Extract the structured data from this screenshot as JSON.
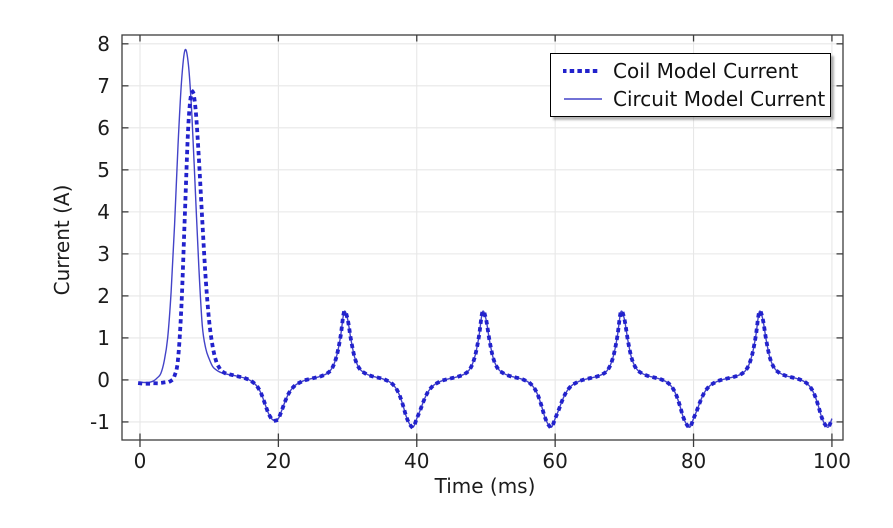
{
  "window": {
    "background": "#ffffff"
  },
  "chart_data": {
    "type": "line",
    "title": "",
    "xlabel": "Time (ms)",
    "ylabel": "Current (A)",
    "x_ticks": [
      0,
      20,
      40,
      60,
      80,
      100
    ],
    "y_ticks": [
      -1,
      0,
      1,
      2,
      3,
      4,
      5,
      6,
      7,
      8
    ],
    "xlim": [
      -2.6,
      101.6
    ],
    "ylim": [
      -1.43,
      8.21
    ],
    "grid": true,
    "legend_position": "top-right",
    "x_unit": "ms",
    "y_unit": "A",
    "x_start": 0,
    "x_step": 0.5,
    "colors": {
      "grid": "#e7e7e7",
      "frame": "#3d3d3d",
      "tick": "#3d3d3d",
      "text": "#1c1c1c"
    },
    "series": [
      {
        "name": "Coil Model Current",
        "style": "dotted",
        "color": "#2222cc",
        "width": 3.8,
        "values": [
          -0.08,
          -0.09,
          -0.09,
          -0.09,
          -0.08,
          -0.08,
          -0.07,
          -0.06,
          -0.04,
          -0.02,
          0.1,
          0.5,
          1.8,
          4.0,
          6.1,
          6.85,
          6.5,
          5.3,
          3.8,
          2.4,
          1.4,
          0.8,
          0.45,
          0.28,
          0.19,
          0.15,
          0.13,
          0.11,
          0.09,
          0.07,
          0.05,
          0.02,
          -0.02,
          -0.08,
          -0.17,
          -0.32,
          -0.54,
          -0.77,
          -0.92,
          -0.97,
          -0.92,
          -0.72,
          -0.5,
          -0.32,
          -0.2,
          -0.12,
          -0.07,
          -0.03,
          0,
          0.02,
          0.04,
          0.06,
          0.08,
          0.11,
          0.15,
          0.22,
          0.36,
          0.62,
          1.05,
          1.62,
          1.45,
          0.95,
          0.55,
          0.33,
          0.22,
          0.16,
          0.12,
          0.09,
          0.07,
          0.05,
          0.03,
          0,
          -0.04,
          -0.1,
          -0.2,
          -0.36,
          -0.6,
          -0.88,
          -1.06,
          -1.12,
          -0.92,
          -0.72,
          -0.5,
          -0.32,
          -0.2,
          -0.12,
          -0.07,
          -0.03,
          0,
          0.02,
          0.04,
          0.06,
          0.08,
          0.11,
          0.15,
          0.22,
          0.36,
          0.62,
          1.05,
          1.62,
          1.45,
          0.95,
          0.55,
          0.33,
          0.22,
          0.16,
          0.12,
          0.09,
          0.07,
          0.05,
          0.03,
          0,
          -0.04,
          -0.1,
          -0.2,
          -0.36,
          -0.6,
          -0.88,
          -1.06,
          -1.12,
          -0.92,
          -0.72,
          -0.5,
          -0.32,
          -0.2,
          -0.12,
          -0.07,
          -0.03,
          0,
          0.02,
          0.04,
          0.06,
          0.08,
          0.11,
          0.15,
          0.22,
          0.36,
          0.62,
          1.05,
          1.62,
          1.45,
          0.95,
          0.55,
          0.33,
          0.22,
          0.16,
          0.12,
          0.09,
          0.07,
          0.05,
          0.03,
          0,
          -0.04,
          -0.1,
          -0.2,
          -0.36,
          -0.6,
          -0.88,
          -1.06,
          -1.12,
          -0.92,
          -0.72,
          -0.5,
          -0.32,
          -0.2,
          -0.12,
          -0.07,
          -0.03,
          0,
          0.02,
          0.04,
          0.06,
          0.08,
          0.11,
          0.15,
          0.22,
          0.36,
          0.62,
          1.05,
          1.62,
          1.45,
          0.95,
          0.55,
          0.33,
          0.22,
          0.16,
          0.12,
          0.09,
          0.07,
          0.05,
          0.03,
          0,
          -0.04,
          -0.1,
          -0.2,
          -0.36,
          -0.6,
          -0.88,
          -1.06,
          -1.12,
          -0.92
        ]
      },
      {
        "name": "Circuit Model Current",
        "style": "solid",
        "color": "#4343c8",
        "width": 1.4,
        "values": [
          -0.05,
          -0.06,
          -0.06,
          -0.05,
          -0.02,
          0.05,
          0.15,
          0.45,
          1.0,
          2.1,
          3.7,
          5.6,
          7.1,
          7.85,
          7.5,
          6.3,
          4.5,
          2.7,
          1.3,
          0.75,
          0.5,
          0.32,
          0.24,
          0.19,
          0.16,
          0.14,
          0.12,
          0.11,
          0.09,
          0.07,
          0.05,
          0.02,
          -0.02,
          -0.08,
          -0.17,
          -0.32,
          -0.54,
          -0.77,
          -0.92,
          -0.97,
          -0.92,
          -0.72,
          -0.5,
          -0.32,
          -0.2,
          -0.12,
          -0.07,
          -0.03,
          0,
          0.02,
          0.04,
          0.06,
          0.08,
          0.11,
          0.15,
          0.22,
          0.36,
          0.62,
          1.05,
          1.62,
          1.45,
          0.95,
          0.55,
          0.33,
          0.22,
          0.16,
          0.12,
          0.09,
          0.07,
          0.05,
          0.03,
          0,
          -0.04,
          -0.1,
          -0.2,
          -0.36,
          -0.6,
          -0.88,
          -1.06,
          -1.12,
          -0.92,
          -0.72,
          -0.5,
          -0.32,
          -0.2,
          -0.12,
          -0.07,
          -0.03,
          0,
          0.02,
          0.04,
          0.06,
          0.08,
          0.11,
          0.15,
          0.22,
          0.36,
          0.62,
          1.05,
          1.62,
          1.45,
          0.95,
          0.55,
          0.33,
          0.22,
          0.16,
          0.12,
          0.09,
          0.07,
          0.05,
          0.03,
          0,
          -0.04,
          -0.1,
          -0.2,
          -0.36,
          -0.6,
          -0.88,
          -1.06,
          -1.12,
          -0.92,
          -0.72,
          -0.5,
          -0.32,
          -0.2,
          -0.12,
          -0.07,
          -0.03,
          0,
          0.02,
          0.04,
          0.06,
          0.08,
          0.11,
          0.15,
          0.22,
          0.36,
          0.62,
          1.05,
          1.62,
          1.45,
          0.95,
          0.55,
          0.33,
          0.22,
          0.16,
          0.12,
          0.09,
          0.07,
          0.05,
          0.03,
          0,
          -0.04,
          -0.1,
          -0.2,
          -0.36,
          -0.6,
          -0.88,
          -1.06,
          -1.12,
          -0.92,
          -0.72,
          -0.5,
          -0.32,
          -0.2,
          -0.12,
          -0.07,
          -0.03,
          0,
          0.02,
          0.04,
          0.06,
          0.08,
          0.11,
          0.15,
          0.22,
          0.36,
          0.62,
          1.05,
          1.62,
          1.45,
          0.95,
          0.55,
          0.33,
          0.22,
          0.16,
          0.12,
          0.09,
          0.07,
          0.05,
          0.03,
          0,
          -0.04,
          -0.1,
          -0.2,
          -0.36,
          -0.6,
          -0.88,
          -1.06,
          -1.12,
          -0.92
        ]
      }
    ]
  },
  "legend": {
    "items": [
      {
        "label": "Coil Model Current"
      },
      {
        "label": "Circuit Model Current"
      }
    ]
  }
}
